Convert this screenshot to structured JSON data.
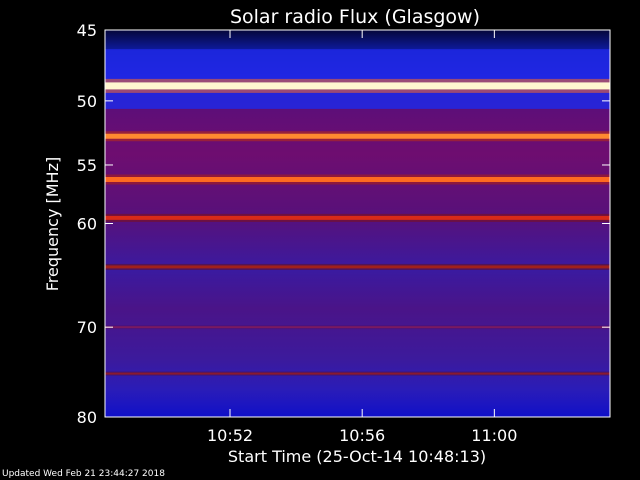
{
  "chart_data": {
    "type": "heatmap",
    "title": "Solar radio Flux (Glasgow)",
    "xlabel": "Start Time (25-Oct-14 10:48:13)",
    "ylabel": "Frequency [MHz]",
    "x_ticks": [
      "10:52",
      "10:56",
      "11:00"
    ],
    "y_ticks": [
      45,
      50,
      55,
      60,
      70,
      80
    ],
    "ylim": [
      45,
      80
    ],
    "y_scale": "log",
    "xlim": [
      "10:48:13",
      "11:03:30"
    ],
    "colormap": "red-temperature",
    "emission_lines_mhz": [
      48.9,
      52.7,
      56.2,
      59.5,
      64.0,
      70.0,
      75.0
    ],
    "bright_band_mhz": [
      46.3,
      50.6
    ]
  },
  "footer": {
    "updated": "Updated Wed Feb 21 23:44:27 2018"
  },
  "colors": {
    "background": "#000000",
    "axes": "#ffffff",
    "low": "#0000c8",
    "mid": "#7a0a6a",
    "high": "#ff5a00",
    "peak": "#ffffe0"
  }
}
